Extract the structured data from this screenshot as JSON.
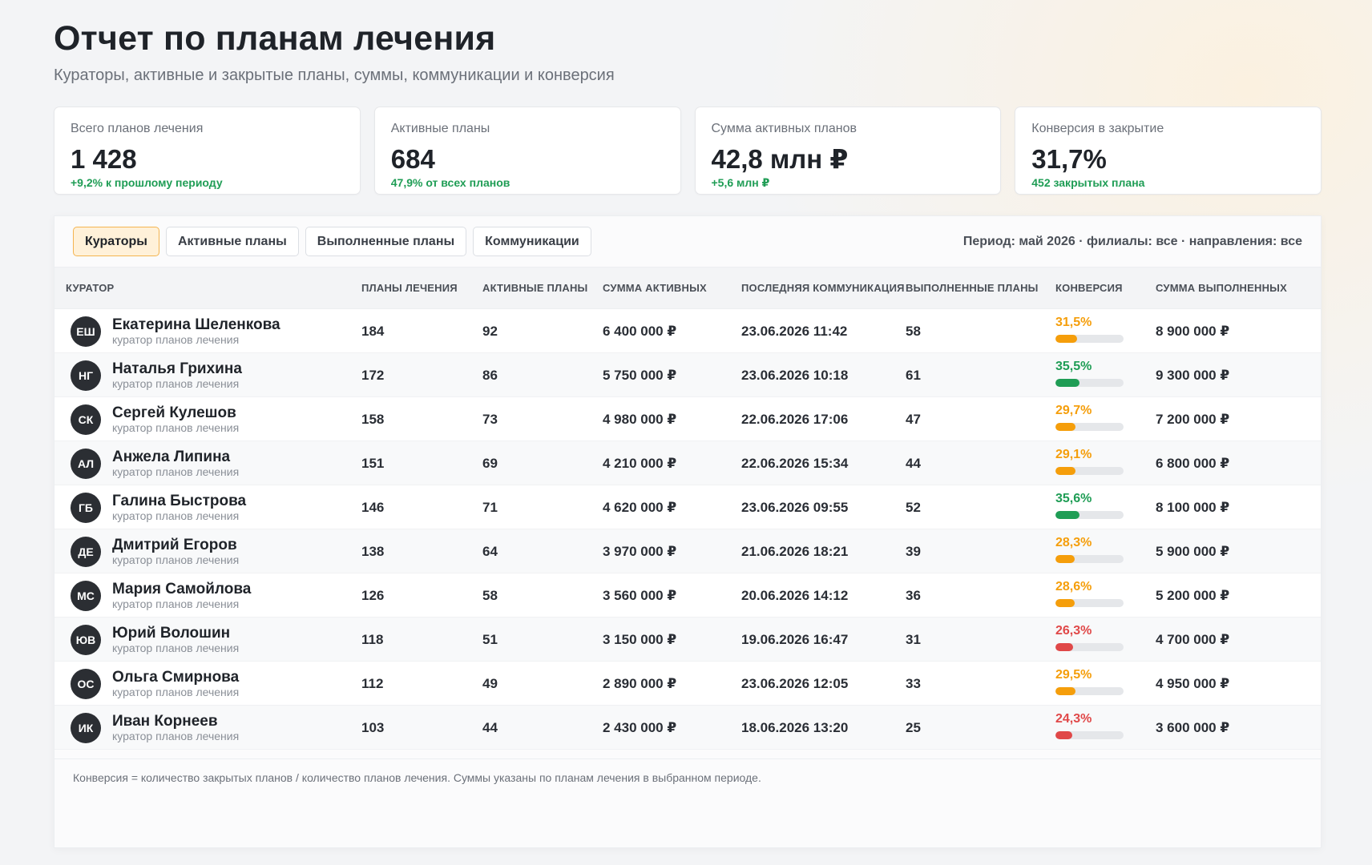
{
  "header": {
    "title": "Отчет по планам лечения",
    "subtitle": "Кураторы, активные и закрытые планы, суммы, коммуникации и конверсия"
  },
  "kpis": [
    {
      "label": "Всего планов лечения",
      "value": "1 428",
      "delta": "+9,2% к прошлому периоду"
    },
    {
      "label": "Активные планы",
      "value": "684",
      "delta": "47,9% от всех планов"
    },
    {
      "label": "Сумма активных планов",
      "value": "42,8 млн ₽",
      "delta": "+5,6 млн ₽"
    },
    {
      "label": "Конверсия в закрытие",
      "value": "31,7%",
      "delta": "452 закрытых плана"
    }
  ],
  "tabs": [
    {
      "label": "Кураторы",
      "active": true
    },
    {
      "label": "Активные планы",
      "active": false
    },
    {
      "label": "Выполненные планы",
      "active": false
    },
    {
      "label": "Коммуникации",
      "active": false
    }
  ],
  "period": "Период: май 2026 · филиалы: все · направления: все",
  "columns": [
    "КУРАТОР",
    "ПЛАНЫ ЛЕЧЕНИЯ",
    "АКТИВНЫЕ ПЛАНЫ",
    "СУММА АКТИВНЫХ",
    "ПОСЛЕДНЯЯ КОММУНИКАЦИЯ",
    "ВЫПОЛНЕННЫЕ ПЛАНЫ",
    "КОНВЕРСИЯ",
    "СУММА ВЫПОЛНЕННЫХ"
  ],
  "colors": {
    "good": "#1f9d55",
    "warn": "#f59e0b",
    "bad": "#e04848",
    "accent": "#f4b450"
  },
  "rows": [
    {
      "initials": "ЕШ",
      "name": "Екатерина Шеленкова",
      "role": "куратор планов лечения",
      "plans": "184",
      "active": "92",
      "active_sum": "6 400 000 ₽",
      "last_comm": "23.06.2026 11:42",
      "done": "58",
      "conversion": "31,5%",
      "conversion_value": 31.5,
      "status": "warn",
      "done_sum": "8 900 000 ₽"
    },
    {
      "initials": "НГ",
      "name": "Наталья Грихина",
      "role": "куратор планов лечения",
      "plans": "172",
      "active": "86",
      "active_sum": "5 750 000 ₽",
      "last_comm": "23.06.2026 10:18",
      "done": "61",
      "conversion": "35,5%",
      "conversion_value": 35.5,
      "status": "good",
      "done_sum": "9 300 000 ₽"
    },
    {
      "initials": "СК",
      "name": "Сергей Кулешов",
      "role": "куратор планов лечения",
      "plans": "158",
      "active": "73",
      "active_sum": "4 980 000 ₽",
      "last_comm": "22.06.2026 17:06",
      "done": "47",
      "conversion": "29,7%",
      "conversion_value": 29.7,
      "status": "warn",
      "done_sum": "7 200 000 ₽"
    },
    {
      "initials": "АЛ",
      "name": "Анжела Липина",
      "role": "куратор планов лечения",
      "plans": "151",
      "active": "69",
      "active_sum": "4 210 000 ₽",
      "last_comm": "22.06.2026 15:34",
      "done": "44",
      "conversion": "29,1%",
      "conversion_value": 29.1,
      "status": "warn",
      "done_sum": "6 800 000 ₽"
    },
    {
      "initials": "ГБ",
      "name": "Галина Быстрова",
      "role": "куратор планов лечения",
      "plans": "146",
      "active": "71",
      "active_sum": "4 620 000 ₽",
      "last_comm": "23.06.2026 09:55",
      "done": "52",
      "conversion": "35,6%",
      "conversion_value": 35.6,
      "status": "good",
      "done_sum": "8 100 000 ₽"
    },
    {
      "initials": "ДЕ",
      "name": "Дмитрий Егоров",
      "role": "куратор планов лечения",
      "plans": "138",
      "active": "64",
      "active_sum": "3 970 000 ₽",
      "last_comm": "21.06.2026 18:21",
      "done": "39",
      "conversion": "28,3%",
      "conversion_value": 28.3,
      "status": "warn",
      "done_sum": "5 900 000 ₽"
    },
    {
      "initials": "МС",
      "name": "Мария Самойлова",
      "role": "куратор планов лечения",
      "plans": "126",
      "active": "58",
      "active_sum": "3 560 000 ₽",
      "last_comm": "20.06.2026 14:12",
      "done": "36",
      "conversion": "28,6%",
      "conversion_value": 28.6,
      "status": "warn",
      "done_sum": "5 200 000 ₽"
    },
    {
      "initials": "ЮВ",
      "name": "Юрий Волошин",
      "role": "куратор планов лечения",
      "plans": "118",
      "active": "51",
      "active_sum": "3 150 000 ₽",
      "last_comm": "19.06.2026 16:47",
      "done": "31",
      "conversion": "26,3%",
      "conversion_value": 26.3,
      "status": "bad",
      "done_sum": "4 700 000 ₽"
    },
    {
      "initials": "ОС",
      "name": "Ольга Смирнова",
      "role": "куратор планов лечения",
      "plans": "112",
      "active": "49",
      "active_sum": "2 890 000 ₽",
      "last_comm": "23.06.2026 12:05",
      "done": "33",
      "conversion": "29,5%",
      "conversion_value": 29.5,
      "status": "warn",
      "done_sum": "4 950 000 ₽"
    },
    {
      "initials": "ИК",
      "name": "Иван Корнеев",
      "role": "куратор планов лечения",
      "plans": "103",
      "active": "44",
      "active_sum": "2 430 000 ₽",
      "last_comm": "18.06.2026 13:20",
      "done": "25",
      "conversion": "24,3%",
      "conversion_value": 24.3,
      "status": "bad",
      "done_sum": "3 600 000 ₽"
    }
  ],
  "footnote": "Конверсия = количество закрытых планов / количество планов лечения. Суммы указаны по планам лечения в выбранном периоде."
}
